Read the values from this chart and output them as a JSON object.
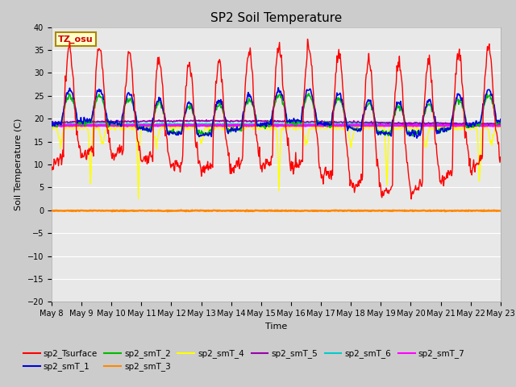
{
  "title": "SP2 Soil Temperature",
  "ylabel": "Soil Temperature (C)",
  "xlabel": "Time",
  "ylim": [
    -20,
    40
  ],
  "yticks": [
    -20,
    -15,
    -10,
    -5,
    0,
    5,
    10,
    15,
    20,
    25,
    30,
    35,
    40
  ],
  "x_end": 15,
  "num_points": 720,
  "tz_label": "TZ_osu",
  "fig_bg": "#cccccc",
  "plot_bg": "#e8e8e8",
  "series_colors": {
    "sp2_Tsurface": "#ff0000",
    "sp2_smT_1": "#0000dd",
    "sp2_smT_2": "#00bb00",
    "sp2_smT_3": "#ff8800",
    "sp2_smT_4": "#ffff00",
    "sp2_smT_5": "#9900aa",
    "sp2_smT_6": "#00cccc",
    "sp2_smT_7": "#ff00ff"
  },
  "x_tick_labels": [
    "May 8",
    "May 9",
    "May 10",
    "May 11",
    "May 12",
    "May 13",
    "May 14",
    "May 15",
    "May 16",
    "May 17",
    "May 18",
    "May 19",
    "May 20",
    "May 21",
    "May 22",
    "May 23"
  ],
  "x_tick_positions": [
    0,
    1,
    2,
    3,
    4,
    5,
    6,
    7,
    8,
    9,
    10,
    11,
    12,
    13,
    14,
    15
  ]
}
